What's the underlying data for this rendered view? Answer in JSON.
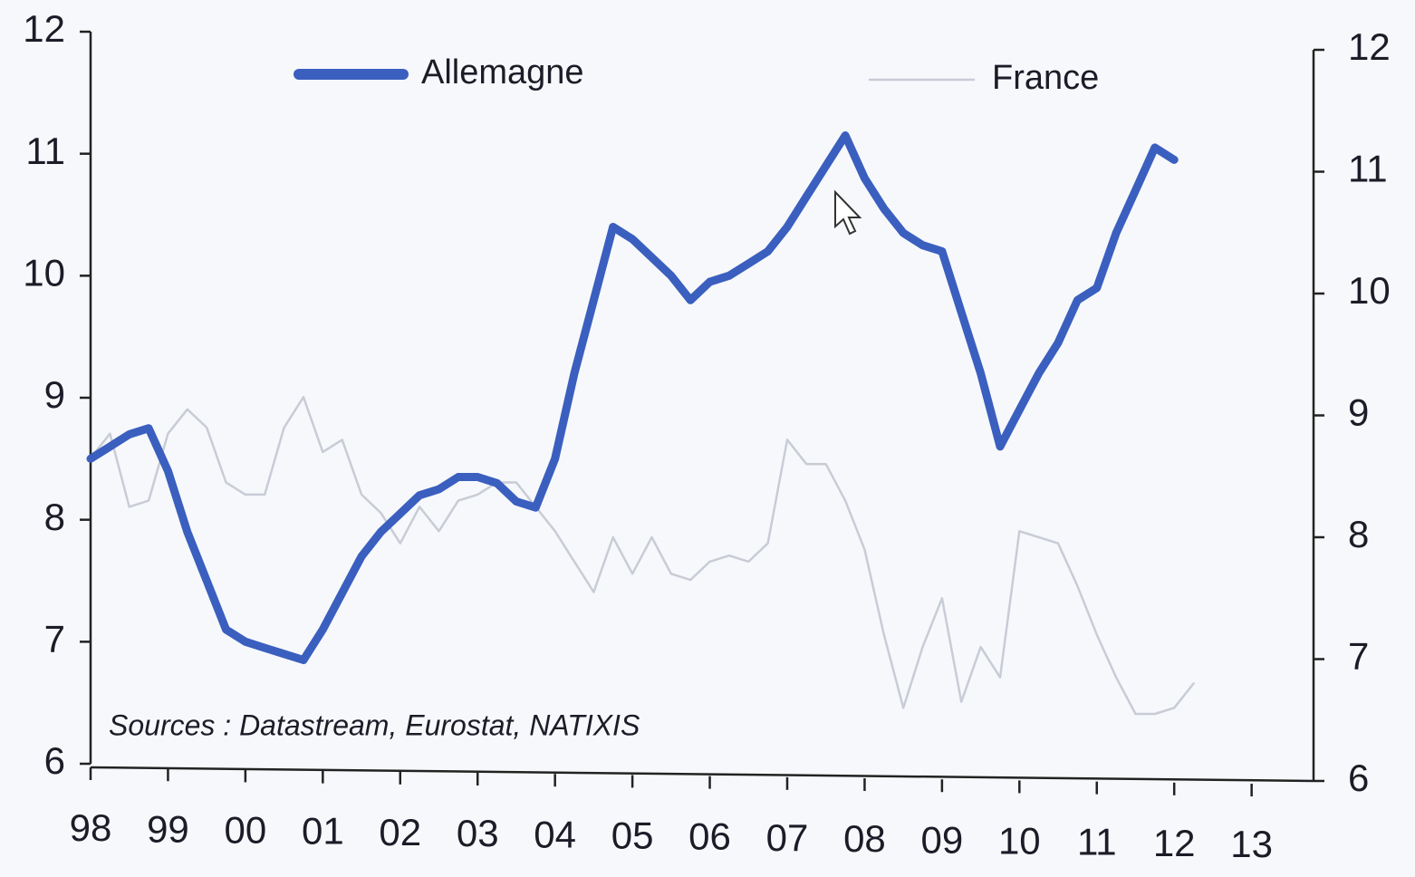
{
  "chart_data": {
    "type": "line",
    "annotation": "Sources : Datastream, Eurostat, NATIXIS",
    "xlim": [
      1998,
      2013.8
    ],
    "xticks": [
      {
        "value": 1998,
        "label": "98"
      },
      {
        "value": 1999,
        "label": "99"
      },
      {
        "value": 2000,
        "label": "00"
      },
      {
        "value": 2001,
        "label": "01"
      },
      {
        "value": 2002,
        "label": "02"
      },
      {
        "value": 2003,
        "label": "03"
      },
      {
        "value": 2004,
        "label": "04"
      },
      {
        "value": 2005,
        "label": "05"
      },
      {
        "value": 2006,
        "label": "06"
      },
      {
        "value": 2007,
        "label": "07"
      },
      {
        "value": 2008,
        "label": "08"
      },
      {
        "value": 2009,
        "label": "09"
      },
      {
        "value": 2010,
        "label": "10"
      },
      {
        "value": 2011,
        "label": "11"
      },
      {
        "value": 2012,
        "label": "12"
      },
      {
        "value": 2013,
        "label": "13"
      }
    ],
    "ylim": [
      6,
      12
    ],
    "yticks": [
      6,
      7,
      8,
      9,
      10,
      11,
      12
    ],
    "y2lim": [
      6,
      12
    ],
    "y2ticks": [
      6,
      7,
      8,
      9,
      10,
      11,
      12
    ],
    "series": [
      {
        "name": "Allemagne",
        "color": "#3a5fbf",
        "x": [
          1998,
          1998.25,
          1998.5,
          1998.75,
          1999,
          1999.25,
          1999.5,
          1999.75,
          2000,
          2000.25,
          2000.5,
          2000.75,
          2001,
          2001.25,
          2001.5,
          2001.75,
          2002,
          2002.25,
          2002.5,
          2002.75,
          2003,
          2003.25,
          2003.5,
          2003.75,
          2004,
          2004.25,
          2004.5,
          2004.75,
          2005,
          2005.25,
          2005.5,
          2005.75,
          2006,
          2006.25,
          2006.5,
          2006.75,
          2007,
          2007.25,
          2007.5,
          2007.75,
          2008,
          2008.25,
          2008.5,
          2008.75,
          2009,
          2009.25,
          2009.5,
          2009.75,
          2010,
          2010.25,
          2010.5,
          2010.75,
          2011,
          2011.25,
          2011.5,
          2011.75,
          2012
        ],
        "values": [
          8.5,
          8.6,
          8.7,
          8.75,
          8.4,
          7.9,
          7.5,
          7.1,
          7.0,
          6.95,
          6.9,
          6.85,
          7.1,
          7.4,
          7.7,
          7.9,
          8.05,
          8.2,
          8.25,
          8.35,
          8.35,
          8.3,
          8.15,
          8.1,
          8.5,
          9.2,
          9.8,
          10.4,
          10.3,
          10.15,
          10.0,
          9.8,
          9.95,
          10.0,
          10.1,
          10.2,
          10.4,
          10.65,
          10.9,
          11.15,
          10.8,
          10.55,
          10.35,
          10.25,
          10.2,
          9.7,
          9.2,
          8.6,
          8.9,
          9.2,
          9.45,
          9.8,
          9.9,
          10.35,
          10.7,
          11.05,
          10.95
        ]
      },
      {
        "name": "France",
        "color": "#c8ccd6",
        "axis": "y2",
        "x": [
          1998,
          1998.25,
          1998.5,
          1998.75,
          1999,
          1999.25,
          1999.5,
          1999.75,
          2000,
          2000.25,
          2000.5,
          2000.75,
          2001,
          2001.25,
          2001.5,
          2001.75,
          2002,
          2002.25,
          2002.5,
          2002.75,
          2003,
          2003.25,
          2003.5,
          2004,
          2004.25,
          2004.5,
          2004.75,
          2005,
          2005.25,
          2005.5,
          2005.75,
          2006,
          2006.25,
          2006.5,
          2006.75,
          2007,
          2007.25,
          2007.5,
          2007.75,
          2008,
          2008.25,
          2008.5,
          2008.75,
          2009,
          2009.25,
          2009.5,
          2009.75,
          2010,
          2010.25,
          2010.5,
          2010.75,
          2011,
          2011.25,
          2011.5,
          2011.75,
          2012,
          2012.25
        ],
        "values": [
          8.65,
          8.85,
          8.25,
          8.3,
          8.85,
          9.05,
          8.9,
          8.45,
          8.35,
          8.35,
          8.9,
          9.15,
          8.7,
          8.8,
          8.35,
          8.2,
          7.95,
          8.25,
          8.05,
          8.3,
          8.35,
          8.45,
          8.45,
          8.05,
          7.8,
          7.55,
          8.0,
          7.7,
          8.0,
          7.7,
          7.65,
          7.8,
          7.85,
          7.8,
          7.95,
          8.8,
          8.6,
          8.6,
          8.3,
          7.9,
          7.2,
          6.6,
          7.1,
          7.5,
          6.65,
          7.1,
          6.85,
          8.05,
          8.0,
          7.95,
          7.6,
          7.2,
          6.85,
          6.55,
          6.55,
          6.6,
          6.8
        ]
      }
    ]
  }
}
